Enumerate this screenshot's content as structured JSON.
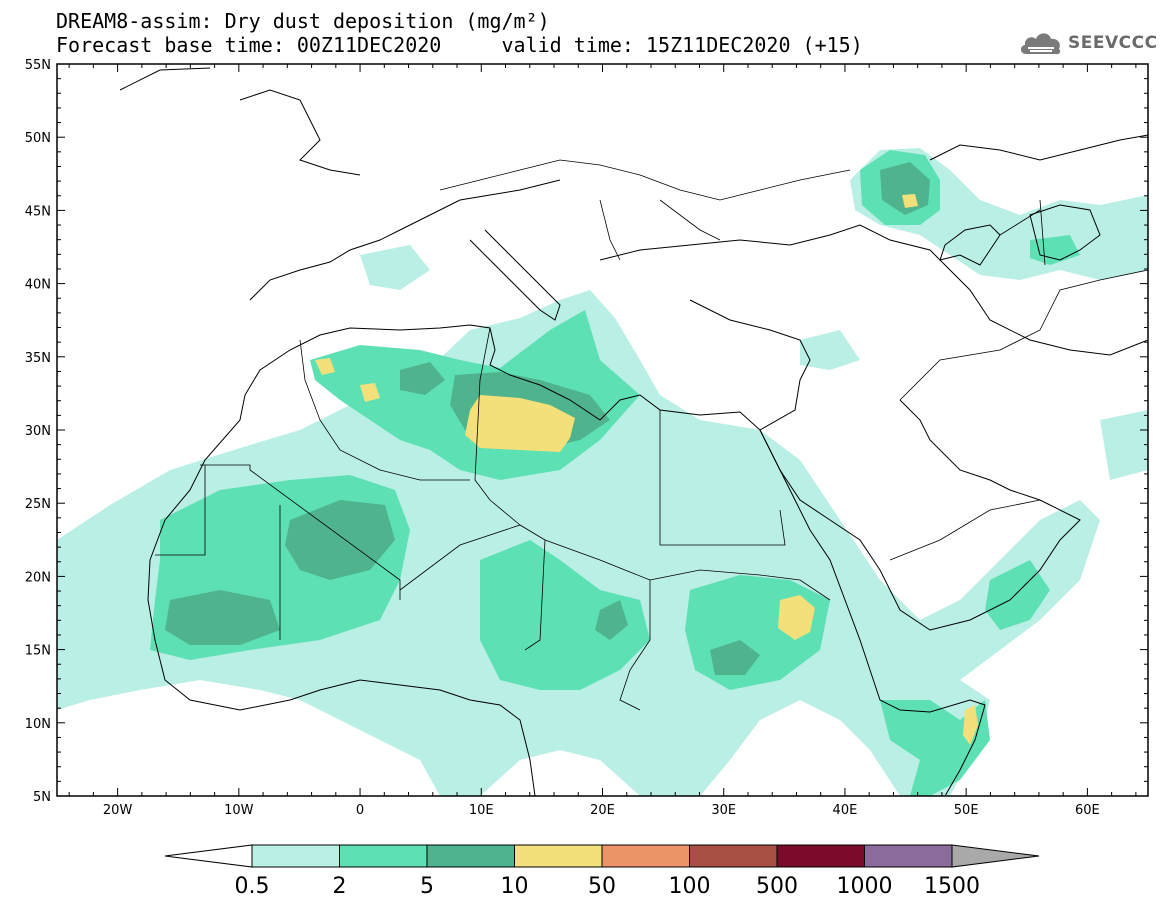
{
  "header": {
    "title_line1": "DREAM8-assim: Dry dust deposition (mg/m²)",
    "title_line2": "Forecast base time: 00Z11DEC2020     valid time: 15Z11DEC2020 (+15)"
  },
  "logo": {
    "text": "SEEVCCC",
    "icon": "cloud-logo-icon"
  },
  "map": {
    "lon_range": [
      -25,
      65
    ],
    "lat_range": [
      5,
      55
    ],
    "lon_ticks": [
      "20W",
      "10W",
      "0",
      "10E",
      "20E",
      "30E",
      "40E",
      "50E",
      "60E"
    ],
    "lat_ticks": [
      "55N",
      "50N",
      "45N",
      "40N",
      "35N",
      "30N",
      "25N",
      "20N",
      "15N",
      "10N",
      "5N"
    ]
  },
  "legend": {
    "labels": [
      "0.5",
      "2",
      "5",
      "10",
      "50",
      "100",
      "500",
      "1000",
      "1500"
    ],
    "colors": [
      "#ffffff",
      "#b9efe4",
      "#5ee0b5",
      "#4fb38e",
      "#f4e07a",
      "#ea9468",
      "#a94e45",
      "#7b0b2b",
      "#8b6a9c",
      "#a9a9a9"
    ]
  }
}
